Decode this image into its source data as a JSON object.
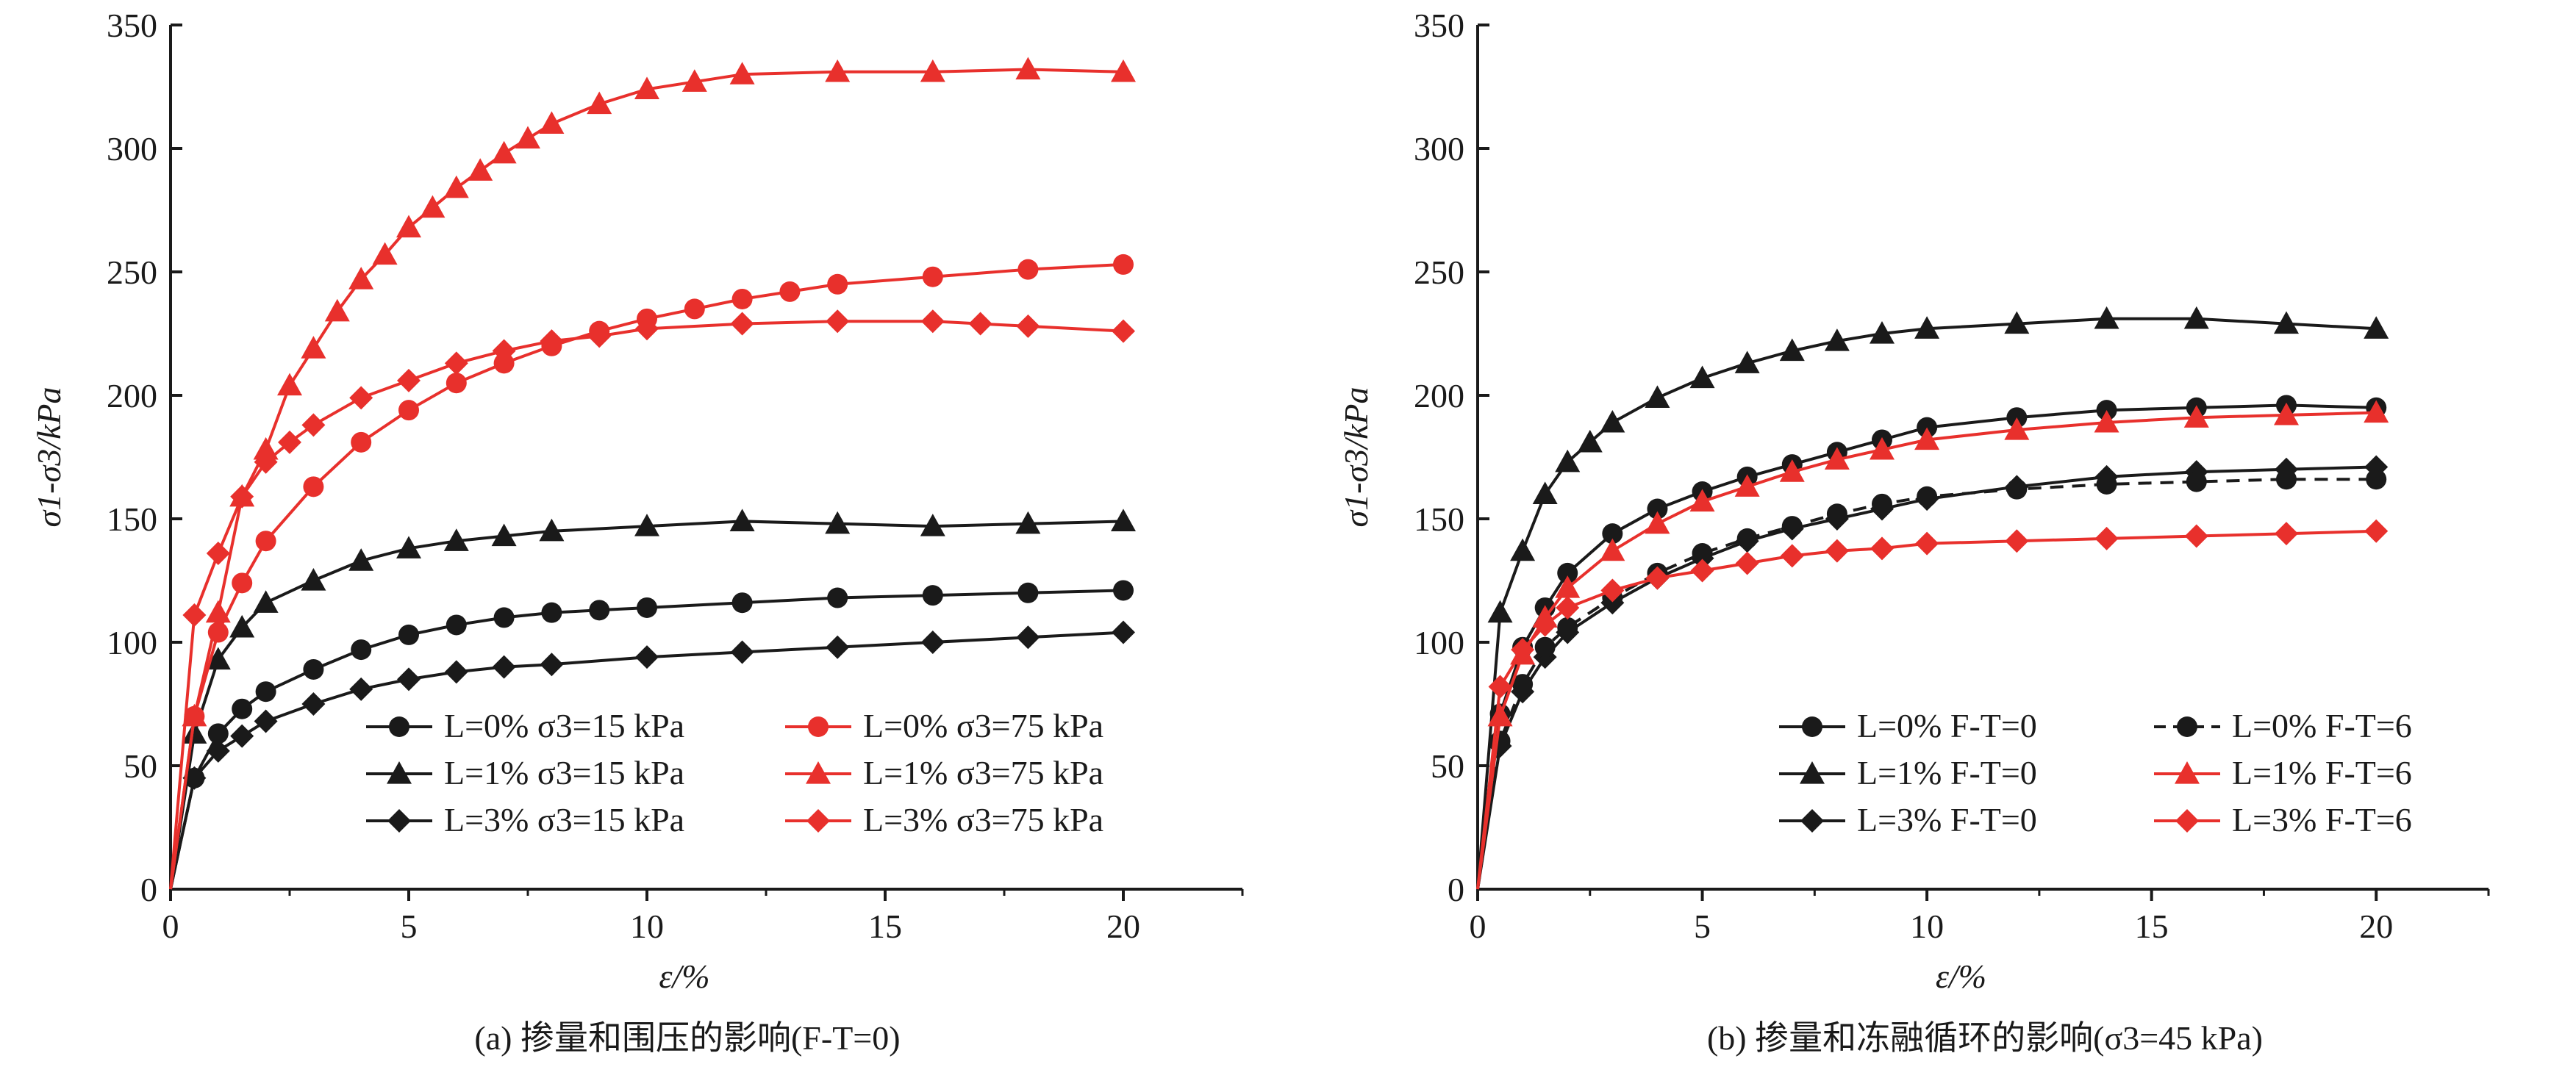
{
  "captions": [
    "(a) 掺量和围压的影响(F-T=0)",
    "(b) 掺量和冻融循环的影响(σ3=45 kPa)"
  ],
  "colors": {
    "black": "#1a1a1a",
    "red": "#e8302c"
  },
  "chart_data": [
    {
      "type": "line",
      "xlabel": "ε/%",
      "ylabel": "σ1-σ3/kPa",
      "xlim": [
        0,
        22.5
      ],
      "ylim": [
        0,
        350
      ],
      "x_ticks": [
        "0",
        "5",
        "10",
        "15",
        "20"
      ],
      "y_ticks": [
        "0",
        "50",
        "100",
        "150",
        "200",
        "250",
        "300",
        "350"
      ],
      "grid": false,
      "legend_position": "bottom-right",
      "series": [
        {
          "name": "L=0% σ3=15 kPa",
          "color": "#1a1a1a",
          "marker": "circle",
          "dash": false,
          "points": [
            [
              0,
              0
            ],
            [
              0.5,
              45
            ],
            [
              1,
              63
            ],
            [
              1.5,
              73
            ],
            [
              2,
              80
            ],
            [
              3,
              89
            ],
            [
              4,
              97
            ],
            [
              5,
              103
            ],
            [
              6,
              107
            ],
            [
              7,
              110
            ],
            [
              8,
              112
            ],
            [
              9,
              113
            ],
            [
              10,
              114
            ],
            [
              12,
              116
            ],
            [
              14,
              118
            ],
            [
              16,
              119
            ],
            [
              18,
              120
            ],
            [
              20,
              121
            ]
          ]
        },
        {
          "name": "L=1% σ3=15 kPa",
          "color": "#1a1a1a",
          "marker": "triangle",
          "dash": false,
          "points": [
            [
              0,
              0
            ],
            [
              0.5,
              63
            ],
            [
              1,
              93
            ],
            [
              1.5,
              106
            ],
            [
              2,
              116
            ],
            [
              3,
              125
            ],
            [
              4,
              133
            ],
            [
              5,
              138
            ],
            [
              6,
              141
            ],
            [
              7,
              143
            ],
            [
              8,
              145
            ],
            [
              10,
              147
            ],
            [
              12,
              149
            ],
            [
              14,
              148
            ],
            [
              16,
              147
            ],
            [
              18,
              148
            ],
            [
              20,
              149
            ]
          ]
        },
        {
          "name": "L=3% σ3=15 kPa",
          "color": "#1a1a1a",
          "marker": "diamond",
          "dash": false,
          "points": [
            [
              0,
              0
            ],
            [
              0.5,
              45
            ],
            [
              1,
              56
            ],
            [
              1.5,
              62
            ],
            [
              2,
              68
            ],
            [
              3,
              75
            ],
            [
              4,
              81
            ],
            [
              5,
              85
            ],
            [
              6,
              88
            ],
            [
              7,
              90
            ],
            [
              8,
              91
            ],
            [
              10,
              94
            ],
            [
              12,
              96
            ],
            [
              14,
              98
            ],
            [
              16,
              100
            ],
            [
              18,
              102
            ],
            [
              20,
              104
            ]
          ]
        },
        {
          "name": "L=0% σ3=75 kPa",
          "color": "#e8302c",
          "marker": "circle",
          "dash": false,
          "points": [
            [
              0,
              0
            ],
            [
              0.5,
              70
            ],
            [
              1,
              104
            ],
            [
              1.5,
              124
            ],
            [
              2,
              141
            ],
            [
              3,
              163
            ],
            [
              4,
              181
            ],
            [
              5,
              194
            ],
            [
              6,
              205
            ],
            [
              7,
              213
            ],
            [
              8,
              220
            ],
            [
              9,
              226
            ],
            [
              10,
              231
            ],
            [
              11,
              235
            ],
            [
              12,
              239
            ],
            [
              13,
              242
            ],
            [
              14,
              245
            ],
            [
              16,
              248
            ],
            [
              18,
              251
            ],
            [
              20,
              253
            ]
          ]
        },
        {
          "name": "L=1% σ3=75 kPa",
          "color": "#e8302c",
          "marker": "triangle",
          "dash": false,
          "points": [
            [
              0,
              0
            ],
            [
              0.5,
              70
            ],
            [
              1,
              112
            ],
            [
              1.5,
              159
            ],
            [
              2,
              178
            ],
            [
              2.5,
              204
            ],
            [
              3,
              219
            ],
            [
              3.5,
              234
            ],
            [
              4,
              247
            ],
            [
              4.5,
              257
            ],
            [
              5,
              268
            ],
            [
              5.5,
              276
            ],
            [
              6,
              284
            ],
            [
              6.5,
              291
            ],
            [
              7,
              298
            ],
            [
              7.5,
              304
            ],
            [
              8,
              310
            ],
            [
              9,
              318
            ],
            [
              10,
              324
            ],
            [
              11,
              327
            ],
            [
              12,
              330
            ],
            [
              14,
              331
            ],
            [
              16,
              331
            ],
            [
              18,
              332
            ],
            [
              20,
              331
            ]
          ]
        },
        {
          "name": "L=3% σ3=75 kPa",
          "color": "#e8302c",
          "marker": "diamond",
          "dash": false,
          "points": [
            [
              0,
              0
            ],
            [
              0.5,
              111
            ],
            [
              1,
              136
            ],
            [
              1.5,
              159
            ],
            [
              2,
              173
            ],
            [
              2.5,
              181
            ],
            [
              3,
              188
            ],
            [
              4,
              199
            ],
            [
              5,
              206
            ],
            [
              6,
              213
            ],
            [
              7,
              218
            ],
            [
              8,
              222
            ],
            [
              9,
              224
            ],
            [
              10,
              227
            ],
            [
              12,
              229
            ],
            [
              14,
              230
            ],
            [
              16,
              230
            ],
            [
              17,
              229
            ],
            [
              18,
              228
            ],
            [
              20,
              226
            ]
          ]
        }
      ]
    },
    {
      "type": "line",
      "xlabel": "ε/%",
      "ylabel": "σ1-σ3/kPa",
      "xlim": [
        0,
        22.5
      ],
      "ylim": [
        0,
        350
      ],
      "x_ticks": [
        "0",
        "5",
        "10",
        "15",
        "20"
      ],
      "y_ticks": [
        "0",
        "50",
        "100",
        "150",
        "200",
        "250",
        "300",
        "350"
      ],
      "grid": false,
      "legend_position": "bottom-right",
      "series": [
        {
          "name": "L=0% F-T=0",
          "color": "#1a1a1a",
          "marker": "circle",
          "dash": false,
          "points": [
            [
              0,
              0
            ],
            [
              0.5,
              71
            ],
            [
              1,
              98
            ],
            [
              1.5,
              114
            ],
            [
              2,
              128
            ],
            [
              3,
              144
            ],
            [
              4,
              154
            ],
            [
              5,
              161
            ],
            [
              6,
              167
            ],
            [
              7,
              172
            ],
            [
              8,
              177
            ],
            [
              9,
              182
            ],
            [
              10,
              187
            ],
            [
              12,
              191
            ],
            [
              14,
              194
            ],
            [
              16,
              195
            ],
            [
              18,
              196
            ],
            [
              20,
              195
            ]
          ]
        },
        {
          "name": "L=1% F-T=0",
          "color": "#1a1a1a",
          "marker": "triangle",
          "dash": false,
          "points": [
            [
              0,
              0
            ],
            [
              0.5,
              112
            ],
            [
              1,
              137
            ],
            [
              1.5,
              160
            ],
            [
              2,
              173
            ],
            [
              2.5,
              181
            ],
            [
              3,
              189
            ],
            [
              4,
              199
            ],
            [
              5,
              207
            ],
            [
              6,
              213
            ],
            [
              7,
              218
            ],
            [
              8,
              222
            ],
            [
              9,
              225
            ],
            [
              10,
              227
            ],
            [
              12,
              229
            ],
            [
              14,
              231
            ],
            [
              16,
              231
            ],
            [
              18,
              229
            ],
            [
              20,
              227
            ]
          ]
        },
        {
          "name": "L=3% F-T=0",
          "color": "#1a1a1a",
          "marker": "diamond",
          "dash": false,
          "points": [
            [
              0,
              0
            ],
            [
              0.5,
              58
            ],
            [
              1,
              80
            ],
            [
              1.5,
              94
            ],
            [
              2,
              104
            ],
            [
              3,
              116
            ],
            [
              4,
              126
            ],
            [
              5,
              134
            ],
            [
              6,
              141
            ],
            [
              7,
              146
            ],
            [
              8,
              150
            ],
            [
              9,
              154
            ],
            [
              10,
              158
            ],
            [
              12,
              163
            ],
            [
              14,
              167
            ],
            [
              16,
              169
            ],
            [
              18,
              170
            ],
            [
              20,
              171
            ]
          ]
        },
        {
          "name": "L=0% F-T=6",
          "color": "#1a1a1a",
          "marker": "circle",
          "dash": true,
          "points": [
            [
              0,
              0
            ],
            [
              0.5,
              60
            ],
            [
              1,
              83
            ],
            [
              1.5,
              98
            ],
            [
              2,
              106
            ],
            [
              3,
              118
            ],
            [
              4,
              128
            ],
            [
              5,
              136
            ],
            [
              6,
              142
            ],
            [
              7,
              147
            ],
            [
              8,
              152
            ],
            [
              9,
              156
            ],
            [
              10,
              159
            ],
            [
              12,
              162
            ],
            [
              14,
              164
            ],
            [
              16,
              165
            ],
            [
              18,
              166
            ],
            [
              20,
              166
            ]
          ]
        },
        {
          "name": "L=1% F-T=6",
          "color": "#e8302c",
          "marker": "triangle",
          "dash": false,
          "points": [
            [
              0,
              0
            ],
            [
              0.5,
              70
            ],
            [
              1,
              95
            ],
            [
              1.5,
              110
            ],
            [
              2,
              122
            ],
            [
              3,
              137
            ],
            [
              4,
              148
            ],
            [
              5,
              157
            ],
            [
              6,
              163
            ],
            [
              7,
              169
            ],
            [
              8,
              174
            ],
            [
              9,
              178
            ],
            [
              10,
              182
            ],
            [
              12,
              186
            ],
            [
              14,
              189
            ],
            [
              16,
              191
            ],
            [
              18,
              192
            ],
            [
              20,
              193
            ]
          ]
        },
        {
          "name": "L=3% F-T=6",
          "color": "#e8302c",
          "marker": "diamond",
          "dash": false,
          "points": [
            [
              0,
              0
            ],
            [
              0.5,
              82
            ],
            [
              1,
              97
            ],
            [
              1.5,
              107
            ],
            [
              2,
              114
            ],
            [
              3,
              121
            ],
            [
              4,
              126
            ],
            [
              5,
              129
            ],
            [
              6,
              132
            ],
            [
              7,
              135
            ],
            [
              8,
              137
            ],
            [
              9,
              138
            ],
            [
              10,
              140
            ],
            [
              12,
              141
            ],
            [
              14,
              142
            ],
            [
              16,
              143
            ],
            [
              18,
              144
            ],
            [
              20,
              145
            ]
          ]
        }
      ]
    }
  ]
}
